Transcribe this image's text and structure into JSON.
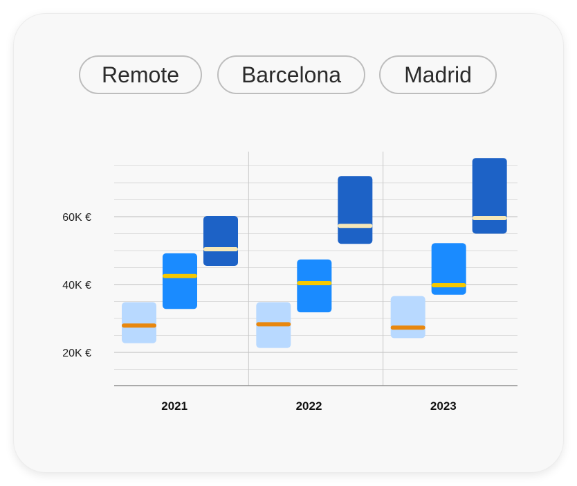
{
  "filters": [
    {
      "label": "Remote"
    },
    {
      "label": "Barcelona"
    },
    {
      "label": "Madrid"
    }
  ],
  "chart_data": {
    "type": "range-bar",
    "y_unit": "EUR",
    "y_ticks": [
      "20K €",
      "40K €",
      "60K €"
    ],
    "y_tick_values": [
      20000,
      40000,
      60000
    ],
    "ylim": [
      10000,
      79000
    ],
    "grid": true,
    "categories": [
      "2021",
      "2022",
      "2023"
    ],
    "series": [
      {
        "color": "#b8d9ff",
        "median_color": "#e8870e",
        "ranges": [
          [
            22700,
            34800
          ],
          [
            21300,
            34800
          ],
          [
            24200,
            36600
          ]
        ],
        "medians": [
          27900,
          28300,
          27300
        ]
      },
      {
        "color": "#1a8bff",
        "median_color": "#f5c800",
        "ranges": [
          [
            32800,
            49200
          ],
          [
            31800,
            47400
          ],
          [
            37000,
            52200
          ]
        ],
        "medians": [
          42500,
          40400,
          39800
        ]
      },
      {
        "color": "#1d62c6",
        "median_color": "#f6e8b8",
        "ranges": [
          [
            45500,
            60200
          ],
          [
            52000,
            72000
          ],
          [
            55000,
            77300
          ]
        ],
        "medians": [
          50400,
          57300,
          59600
        ]
      }
    ]
  }
}
